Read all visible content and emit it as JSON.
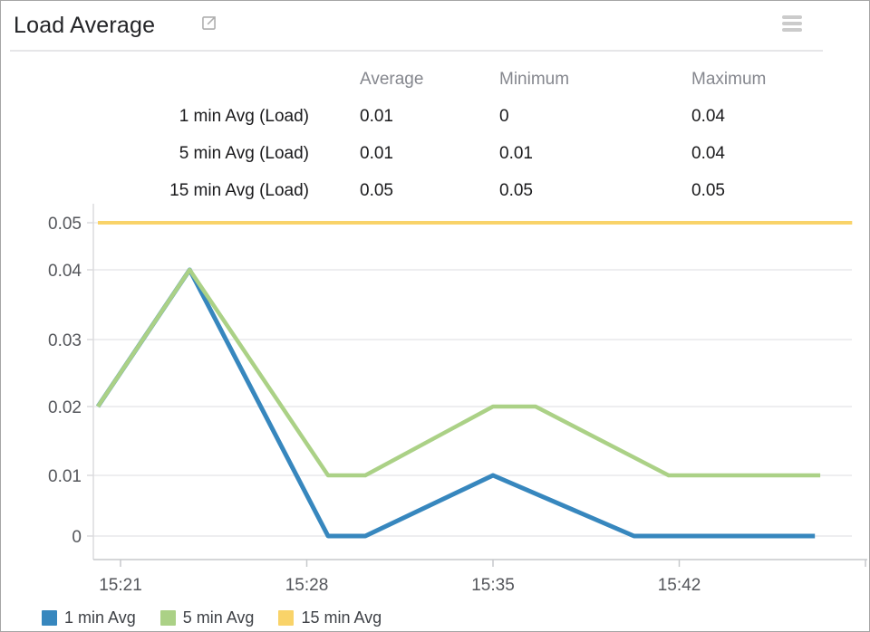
{
  "header": {
    "title": "Load Average"
  },
  "icons": {
    "expand": "open-in-new-window-icon",
    "menu": "hamburger-menu-icon"
  },
  "stats_table": {
    "columns": [
      "Average",
      "Minimum",
      "Maximum"
    ],
    "rows": [
      {
        "label": "1 min Avg (Load)",
        "average": "0.01",
        "minimum": "0",
        "maximum": "0.04"
      },
      {
        "label": "5 min Avg (Load)",
        "average": "0.01",
        "minimum": "0.01",
        "maximum": "0.04"
      },
      {
        "label": "15 min Avg (Load)",
        "average": "0.05",
        "minimum": "0.05",
        "maximum": "0.05"
      }
    ]
  },
  "chart_data": {
    "type": "line",
    "title": "Load Average",
    "xlabel": "",
    "ylabel": "",
    "x_unit": "minutes after 15:00 (estimated from axis)",
    "ylim": [
      0,
      0.05
    ],
    "grid": true,
    "legend_position": "bottom",
    "y_ticks": [
      0,
      0.01,
      0.02,
      0.03,
      0.04,
      0.05
    ],
    "x_ticks": [
      {
        "minute": 21,
        "label": "15:21"
      },
      {
        "minute": 28,
        "label": "15:28"
      },
      {
        "minute": 35,
        "label": "15:35"
      },
      {
        "minute": 42,
        "label": "15:42"
      },
      {
        "minute": 49,
        "label": ""
      }
    ],
    "series": [
      {
        "name": "1 min Avg",
        "color": "#3787be",
        "width": 5,
        "points": [
          [
            20.15,
            0.02
          ],
          [
            23.6,
            0.04
          ],
          [
            28.8,
            0
          ],
          [
            30.2,
            0
          ],
          [
            35,
            0.01
          ],
          [
            40.3,
            0
          ],
          [
            47.1,
            0
          ]
        ]
      },
      {
        "name": "5 min Avg",
        "color": "#abd186",
        "width": 4.5,
        "points": [
          [
            20.15,
            0.02
          ],
          [
            23.6,
            0.04
          ],
          [
            28.8,
            0.01
          ],
          [
            30.2,
            0.01
          ],
          [
            35,
            0.02
          ],
          [
            36.6,
            0.02
          ],
          [
            41.6,
            0.01
          ],
          [
            47.3,
            0.01
          ]
        ]
      },
      {
        "name": "15 min Avg",
        "color": "#f9d369",
        "width": 4,
        "points": [
          [
            20.15,
            0.05
          ],
          [
            48.5,
            0.05
          ]
        ]
      }
    ]
  },
  "legend": [
    {
      "label": "1 min Avg",
      "color": "#3787be"
    },
    {
      "label": "5 min Avg",
      "color": "#abd186"
    },
    {
      "label": "15 min Avg",
      "color": "#f9d369"
    }
  ],
  "colors": {
    "gridline": "#eeeef0",
    "y_axis": "#dbdbde",
    "x_axis": "#c7c9cc",
    "axis_label": "#54565b"
  }
}
